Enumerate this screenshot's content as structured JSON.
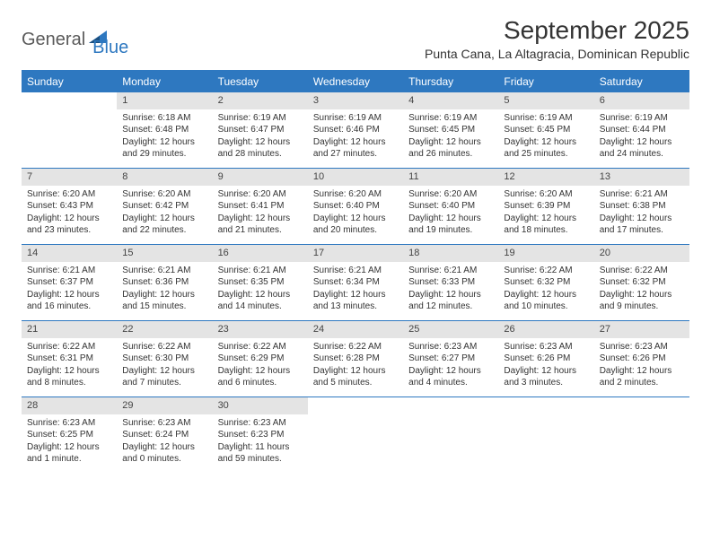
{
  "logo": {
    "part1": "General",
    "part2": "Blue"
  },
  "title": "September 2025",
  "subtitle": "Punta Cana, La Altagracia, Dominican Republic",
  "weekdays": [
    "Sunday",
    "Monday",
    "Tuesday",
    "Wednesday",
    "Thursday",
    "Friday",
    "Saturday"
  ],
  "colors": {
    "accent": "#2e78c0",
    "header_band": "#e4e4e4",
    "text": "#333333",
    "background": "#ffffff"
  },
  "weeks": [
    [
      {
        "n": "",
        "empty": true
      },
      {
        "n": "1",
        "sunrise": "Sunrise: 6:18 AM",
        "sunset": "Sunset: 6:48 PM",
        "daylight": "Daylight: 12 hours and 29 minutes."
      },
      {
        "n": "2",
        "sunrise": "Sunrise: 6:19 AM",
        "sunset": "Sunset: 6:47 PM",
        "daylight": "Daylight: 12 hours and 28 minutes."
      },
      {
        "n": "3",
        "sunrise": "Sunrise: 6:19 AM",
        "sunset": "Sunset: 6:46 PM",
        "daylight": "Daylight: 12 hours and 27 minutes."
      },
      {
        "n": "4",
        "sunrise": "Sunrise: 6:19 AM",
        "sunset": "Sunset: 6:45 PM",
        "daylight": "Daylight: 12 hours and 26 minutes."
      },
      {
        "n": "5",
        "sunrise": "Sunrise: 6:19 AM",
        "sunset": "Sunset: 6:45 PM",
        "daylight": "Daylight: 12 hours and 25 minutes."
      },
      {
        "n": "6",
        "sunrise": "Sunrise: 6:19 AM",
        "sunset": "Sunset: 6:44 PM",
        "daylight": "Daylight: 12 hours and 24 minutes."
      }
    ],
    [
      {
        "n": "7",
        "sunrise": "Sunrise: 6:20 AM",
        "sunset": "Sunset: 6:43 PM",
        "daylight": "Daylight: 12 hours and 23 minutes."
      },
      {
        "n": "8",
        "sunrise": "Sunrise: 6:20 AM",
        "sunset": "Sunset: 6:42 PM",
        "daylight": "Daylight: 12 hours and 22 minutes."
      },
      {
        "n": "9",
        "sunrise": "Sunrise: 6:20 AM",
        "sunset": "Sunset: 6:41 PM",
        "daylight": "Daylight: 12 hours and 21 minutes."
      },
      {
        "n": "10",
        "sunrise": "Sunrise: 6:20 AM",
        "sunset": "Sunset: 6:40 PM",
        "daylight": "Daylight: 12 hours and 20 minutes."
      },
      {
        "n": "11",
        "sunrise": "Sunrise: 6:20 AM",
        "sunset": "Sunset: 6:40 PM",
        "daylight": "Daylight: 12 hours and 19 minutes."
      },
      {
        "n": "12",
        "sunrise": "Sunrise: 6:20 AM",
        "sunset": "Sunset: 6:39 PM",
        "daylight": "Daylight: 12 hours and 18 minutes."
      },
      {
        "n": "13",
        "sunrise": "Sunrise: 6:21 AM",
        "sunset": "Sunset: 6:38 PM",
        "daylight": "Daylight: 12 hours and 17 minutes."
      }
    ],
    [
      {
        "n": "14",
        "sunrise": "Sunrise: 6:21 AM",
        "sunset": "Sunset: 6:37 PM",
        "daylight": "Daylight: 12 hours and 16 minutes."
      },
      {
        "n": "15",
        "sunrise": "Sunrise: 6:21 AM",
        "sunset": "Sunset: 6:36 PM",
        "daylight": "Daylight: 12 hours and 15 minutes."
      },
      {
        "n": "16",
        "sunrise": "Sunrise: 6:21 AM",
        "sunset": "Sunset: 6:35 PM",
        "daylight": "Daylight: 12 hours and 14 minutes."
      },
      {
        "n": "17",
        "sunrise": "Sunrise: 6:21 AM",
        "sunset": "Sunset: 6:34 PM",
        "daylight": "Daylight: 12 hours and 13 minutes."
      },
      {
        "n": "18",
        "sunrise": "Sunrise: 6:21 AM",
        "sunset": "Sunset: 6:33 PM",
        "daylight": "Daylight: 12 hours and 12 minutes."
      },
      {
        "n": "19",
        "sunrise": "Sunrise: 6:22 AM",
        "sunset": "Sunset: 6:32 PM",
        "daylight": "Daylight: 12 hours and 10 minutes."
      },
      {
        "n": "20",
        "sunrise": "Sunrise: 6:22 AM",
        "sunset": "Sunset: 6:32 PM",
        "daylight": "Daylight: 12 hours and 9 minutes."
      }
    ],
    [
      {
        "n": "21",
        "sunrise": "Sunrise: 6:22 AM",
        "sunset": "Sunset: 6:31 PM",
        "daylight": "Daylight: 12 hours and 8 minutes."
      },
      {
        "n": "22",
        "sunrise": "Sunrise: 6:22 AM",
        "sunset": "Sunset: 6:30 PM",
        "daylight": "Daylight: 12 hours and 7 minutes."
      },
      {
        "n": "23",
        "sunrise": "Sunrise: 6:22 AM",
        "sunset": "Sunset: 6:29 PM",
        "daylight": "Daylight: 12 hours and 6 minutes."
      },
      {
        "n": "24",
        "sunrise": "Sunrise: 6:22 AM",
        "sunset": "Sunset: 6:28 PM",
        "daylight": "Daylight: 12 hours and 5 minutes."
      },
      {
        "n": "25",
        "sunrise": "Sunrise: 6:23 AM",
        "sunset": "Sunset: 6:27 PM",
        "daylight": "Daylight: 12 hours and 4 minutes."
      },
      {
        "n": "26",
        "sunrise": "Sunrise: 6:23 AM",
        "sunset": "Sunset: 6:26 PM",
        "daylight": "Daylight: 12 hours and 3 minutes."
      },
      {
        "n": "27",
        "sunrise": "Sunrise: 6:23 AM",
        "sunset": "Sunset: 6:26 PM",
        "daylight": "Daylight: 12 hours and 2 minutes."
      }
    ],
    [
      {
        "n": "28",
        "sunrise": "Sunrise: 6:23 AM",
        "sunset": "Sunset: 6:25 PM",
        "daylight": "Daylight: 12 hours and 1 minute."
      },
      {
        "n": "29",
        "sunrise": "Sunrise: 6:23 AM",
        "sunset": "Sunset: 6:24 PM",
        "daylight": "Daylight: 12 hours and 0 minutes."
      },
      {
        "n": "30",
        "sunrise": "Sunrise: 6:23 AM",
        "sunset": "Sunset: 6:23 PM",
        "daylight": "Daylight: 11 hours and 59 minutes."
      },
      {
        "n": "",
        "empty": true
      },
      {
        "n": "",
        "empty": true
      },
      {
        "n": "",
        "empty": true
      },
      {
        "n": "",
        "empty": true
      }
    ]
  ]
}
